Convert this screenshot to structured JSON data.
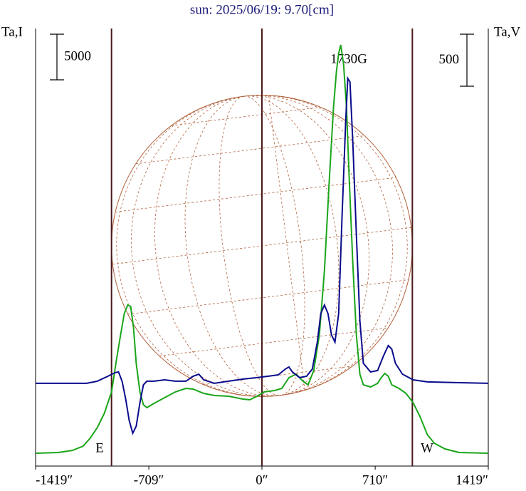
{
  "chart_data": {
    "type": "line",
    "title": "sun: 2025/06/19: 9.70[cm]",
    "y_label": "Ta,I",
    "y2_label": "Ta,V",
    "y_scale": 5000,
    "y2_scale": 500,
    "annotations": [
      "1730G",
      "E",
      "W"
    ],
    "xlim": [
      -1419,
      1419
    ],
    "xticks": [
      {
        "value": -1419,
        "label": "-1419″"
      },
      {
        "value": -709,
        "label": "-709″"
      },
      {
        "value": 0,
        "label": "0″"
      },
      {
        "value": 710,
        "label": "710″"
      },
      {
        "value": 1419,
        "label": "1419″"
      }
    ],
    "vlines": [
      -943,
      0,
      943
    ],
    "ylim": [
      -1406,
      46562
    ],
    "y2lim": [
      -795,
      3411
    ],
    "series": [
      {
        "color": "#1aa51a",
        "axis": "y",
        "x": [
          -1419,
          -1277,
          -1188,
          -1121,
          -1077,
          -1032,
          -988,
          -943,
          -912,
          -886,
          -863,
          -841,
          -823,
          -805,
          -788,
          -765,
          -743,
          -721,
          -676,
          -610,
          -543,
          -476,
          -432,
          -365,
          -298,
          -209,
          -120,
          -76,
          -31,
          13,
          80,
          125,
          169,
          214,
          258,
          289,
          325,
          360,
          392,
          423,
          449,
          467,
          481,
          494,
          512,
          530,
          547,
          570,
          592,
          614,
          636,
          681,
          725,
          748,
          770,
          792,
          814,
          859,
          903,
          948,
          992,
          1037,
          1081,
          1148,
          1237,
          1419
        ],
        "values": [
          0,
          78,
          313,
          781,
          1641,
          2813,
          4375,
          6719,
          10234,
          12969,
          15313,
          16250,
          16094,
          13750,
          9844,
          6719,
          5313,
          5000,
          5469,
          6094,
          6719,
          7109,
          7031,
          6563,
          6328,
          6250,
          5938,
          5859,
          6250,
          6719,
          6875,
          7109,
          8281,
          8672,
          7891,
          7500,
          9063,
          12969,
          20000,
          30156,
          37969,
          41875,
          43828,
          44766,
          42656,
          37969,
          30156,
          20781,
          12969,
          8672,
          7500,
          7266,
          7656,
          8281,
          8750,
          8438,
          7500,
          7109,
          6563,
          5547,
          3984,
          2031,
          1094,
          469,
          78,
          0
        ]
      },
      {
        "color": "#0a0a8c",
        "axis": "y2",
        "x": [
          -1419,
          -1099,
          -1032,
          -966,
          -921,
          -899,
          -877,
          -854,
          -832,
          -810,
          -788,
          -765,
          -743,
          -721,
          -676,
          -610,
          -543,
          -476,
          -432,
          -396,
          -365,
          -298,
          -209,
          -120,
          -31,
          36,
          102,
          147,
          169,
          191,
          236,
          280,
          316,
          347,
          369,
          392,
          414,
          436,
          458,
          481,
          503,
          525,
          538,
          552,
          570,
          592,
          614,
          636,
          681,
          725,
          761,
          792,
          814,
          837,
          881,
          948,
          1037,
          1419
        ],
        "values": [
          0,
          0,
          21,
          68,
          103,
          110,
          21,
          -151,
          -356,
          -479,
          -411,
          -185,
          -14,
          21,
          21,
          34,
          21,
          21,
          68,
          89,
          34,
          0,
          21,
          41,
          55,
          68,
          82,
          137,
          158,
          110,
          55,
          68,
          137,
          397,
          671,
          753,
          671,
          466,
          397,
          671,
          1630,
          2521,
          2932,
          2897,
          2315,
          1425,
          603,
          192,
          110,
          123,
          260,
          363,
          329,
          192,
          89,
          34,
          14,
          0
        ]
      }
    ]
  }
}
